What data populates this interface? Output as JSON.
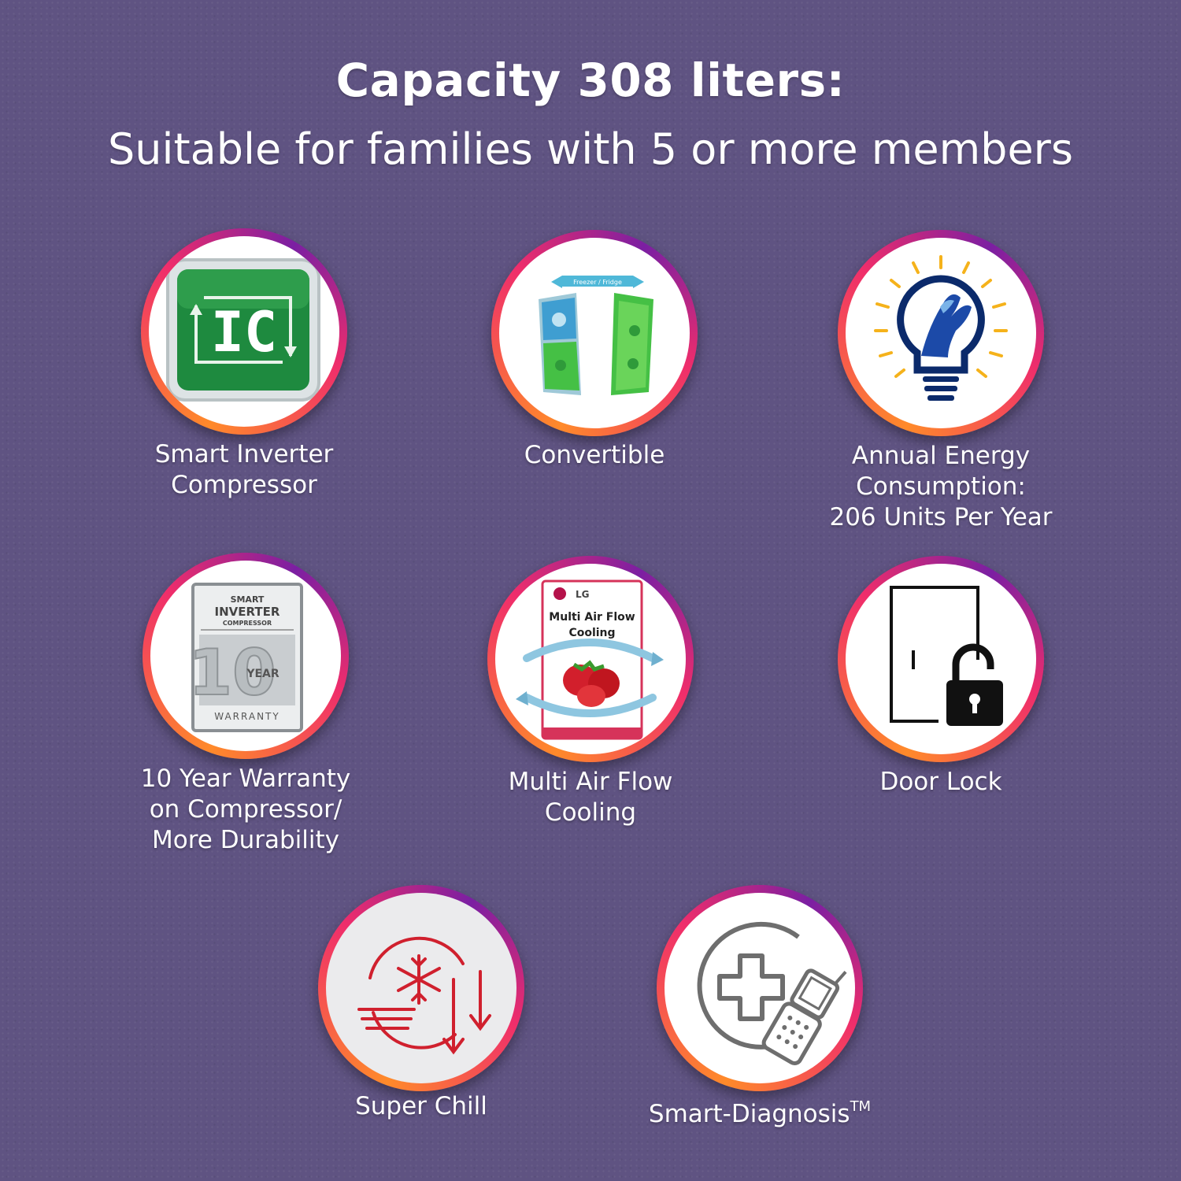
{
  "header": {
    "title": "Capacity 308 liters:",
    "subtitle": "Suitable for families with 5 or more members"
  },
  "features": [
    {
      "icon": "ic-inverter-icon",
      "lines": [
        "Smart Inverter",
        "Compressor"
      ]
    },
    {
      "icon": "convertible-fridge-icon",
      "lines": [
        "Convertible"
      ]
    },
    {
      "icon": "energy-bulb-hand-icon",
      "lines": [
        "Annual Energy",
        "Consumption:",
        "206 Units Per Year"
      ]
    },
    {
      "icon": "warranty-badge-icon",
      "lines": [
        "10 Year Warranty",
        "on Compressor/",
        "More Durability"
      ]
    },
    {
      "icon": "multi-air-flow-icon",
      "lines": [
        "Multi Air Flow",
        "Cooling"
      ]
    },
    {
      "icon": "door-lock-icon",
      "lines": [
        "Door Lock"
      ]
    },
    {
      "icon": "super-chill-icon",
      "lines": [
        "Super Chill"
      ]
    },
    {
      "icon": "smart-diagnosis-icon",
      "lines": [
        "Smart-Diagnosis"
      ],
      "trademark": "TM"
    }
  ],
  "icon_text": {
    "ic": "IC",
    "convertible_banner": "Freezer / Fridge",
    "warranty_top": "SMART",
    "warranty_mid": "INVERTER",
    "warranty_sub": "COMPRESSOR",
    "warranty_years": "10",
    "warranty_year_word": "YEAR",
    "warranty_word": "WARRANTY",
    "lg_logo": "LG",
    "maf_line1": "Multi Air Flow",
    "maf_line2": "Cooling"
  }
}
